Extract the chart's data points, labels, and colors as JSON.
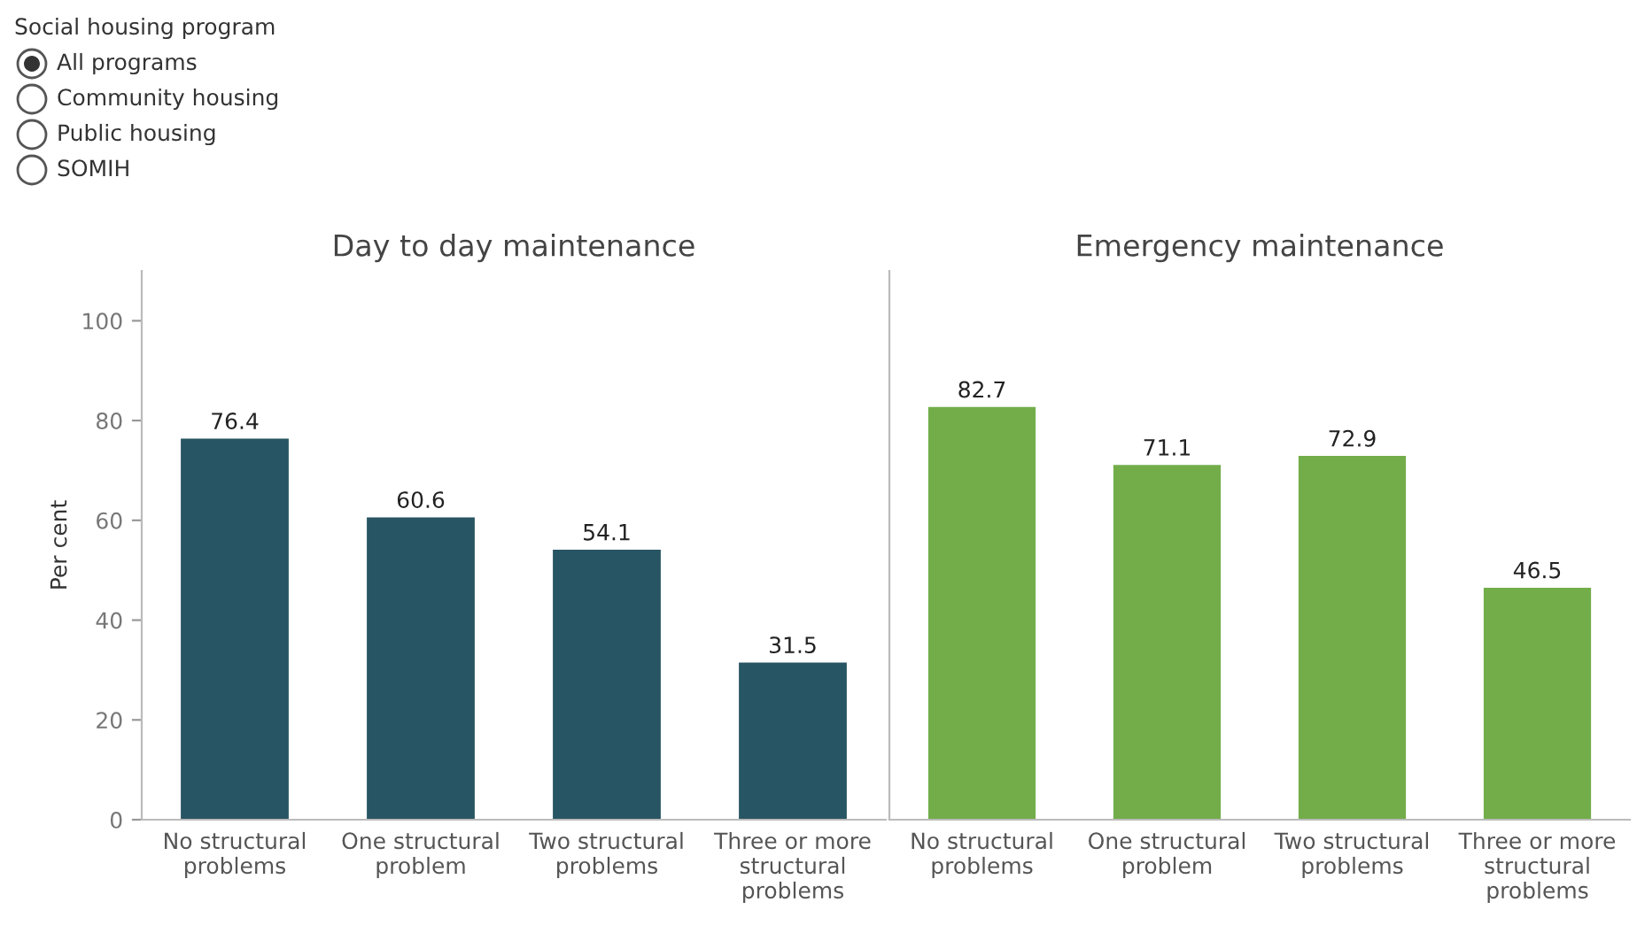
{
  "chart_data": [
    {
      "type": "other",
      "title": "Social housing program",
      "annotations": [
        "All programs",
        "Community housing",
        "Public housing",
        "SOMIH"
      ]
    },
    {
      "type": "bar",
      "title": "Day to day maintenance",
      "ylabel": "Per cent",
      "categories": [
        "No structural\nproblems",
        "One structural\nproblem",
        "Two structural\nproblems",
        "Three or more\nstructural\nproblems"
      ],
      "values": [
        76.4,
        60.6,
        54.1,
        31.5
      ],
      "color": "#285563",
      "ylim": [
        0,
        110
      ],
      "yticks": [
        0,
        20,
        40,
        60,
        80,
        100
      ],
      "data_labels": true,
      "grid": false
    },
    {
      "type": "bar",
      "title": "Emergency maintenance",
      "categories": [
        "No structural\nproblems",
        "One structural\nproblem",
        "Two structural\nproblems",
        "Three or more\nstructural\nproblems"
      ],
      "values": [
        82.7,
        71.1,
        72.9,
        46.5
      ],
      "color": "#72ad4a",
      "ylim": [
        0,
        110
      ],
      "tick_labels": "x",
      "data_labels": true,
      "grid": false
    }
  ]
}
